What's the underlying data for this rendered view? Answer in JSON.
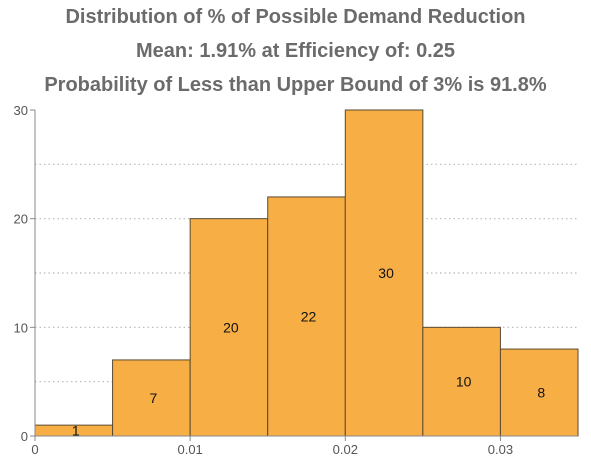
{
  "chart_data": {
    "type": "bar",
    "title_lines": [
      "Distribution of % of Possible Demand Reduction",
      "Mean: 1.91% at Efficiency of: 0.25",
      "Probability of Less than Upper Bound of 3% is 91.8%"
    ],
    "bins": [
      {
        "start": 0.0,
        "end": 0.005,
        "value": 1,
        "label": "1"
      },
      {
        "start": 0.005,
        "end": 0.01,
        "value": 7,
        "label": "7"
      },
      {
        "start": 0.01,
        "end": 0.015,
        "value": 20,
        "label": "20"
      },
      {
        "start": 0.015,
        "end": 0.02,
        "value": 22,
        "label": "22"
      },
      {
        "start": 0.02,
        "end": 0.025,
        "value": 30,
        "label": "30"
      },
      {
        "start": 0.025,
        "end": 0.03,
        "value": 10,
        "label": "10"
      },
      {
        "start": 0.03,
        "end": 0.035,
        "value": 8,
        "label": "8"
      }
    ],
    "xlim": [
      0,
      0.035
    ],
    "ylim": [
      0,
      30
    ],
    "xticks": [
      {
        "value": 0,
        "label": "0"
      },
      {
        "value": 0.01,
        "label": "0.01"
      },
      {
        "value": 0.02,
        "label": "0.02"
      },
      {
        "value": 0.03,
        "label": "0.03"
      }
    ],
    "yticks": [
      {
        "value": 0,
        "label": "0"
      },
      {
        "value": 10,
        "label": "10"
      },
      {
        "value": 20,
        "label": "20"
      },
      {
        "value": 30,
        "label": "30"
      }
    ],
    "gridlines_y": [
      5,
      10,
      15,
      20,
      25
    ],
    "grid": true,
    "bar_color": "#f7ae45",
    "bar_edge_color": "#5a4a30",
    "title_color": "#6b6b6b"
  }
}
